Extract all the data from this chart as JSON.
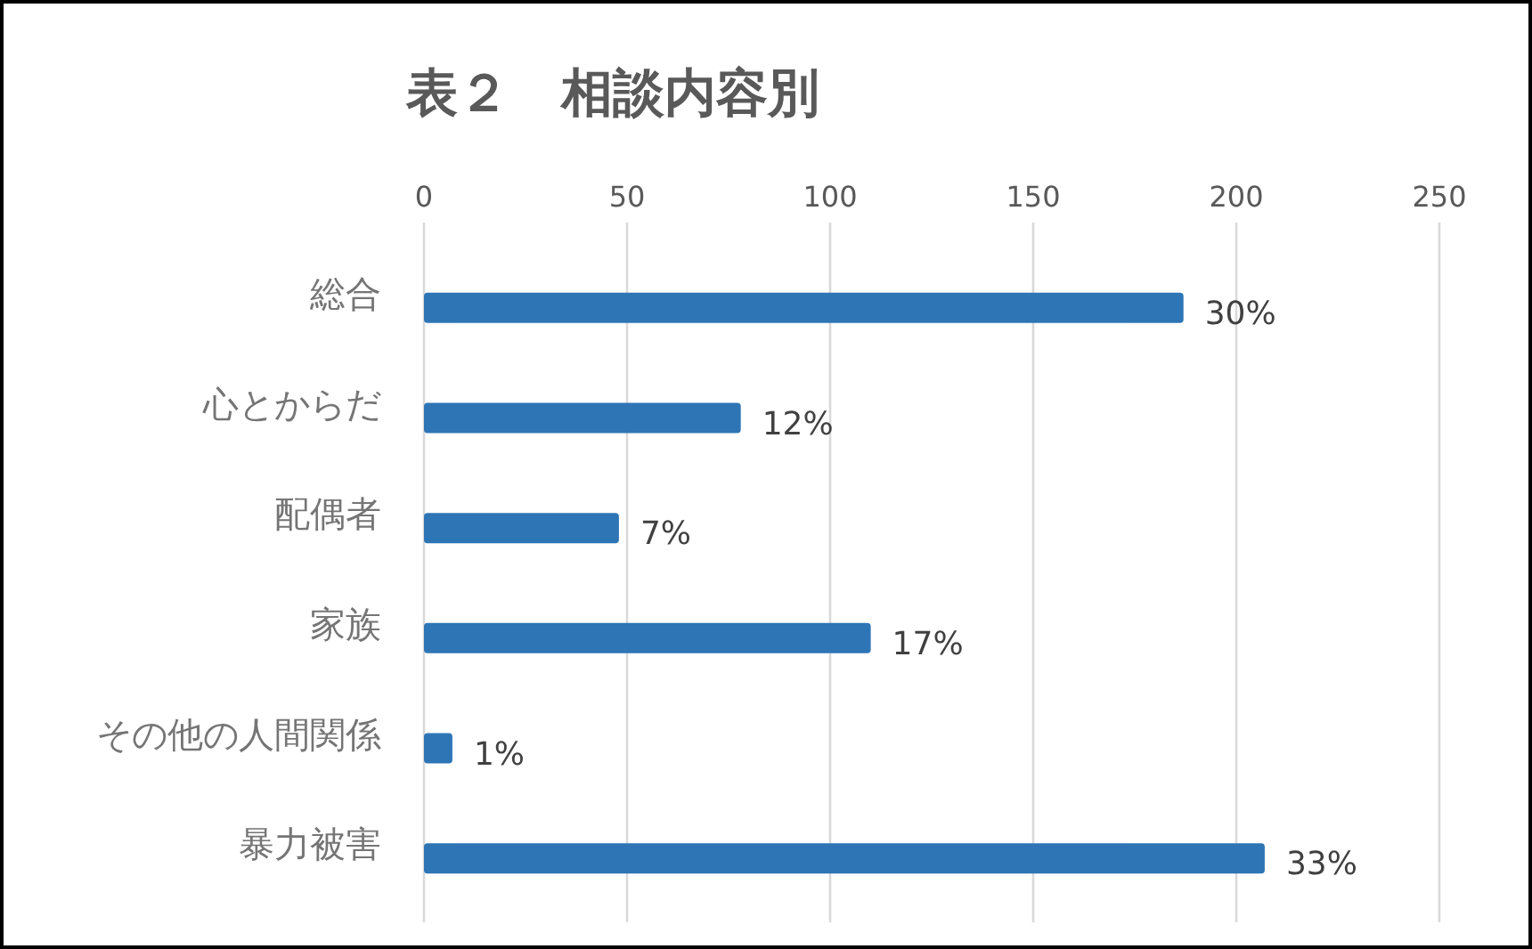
{
  "chart_data": {
    "type": "bar",
    "orientation": "horizontal",
    "title": "表２　相談内容別",
    "categories": [
      "総合",
      "心とからだ",
      "配偶者",
      "家族",
      "その他の人間関係",
      "暴力被害"
    ],
    "values": [
      187,
      78,
      48,
      110,
      7,
      207
    ],
    "color": "#2e75b6",
    "annotations": [
      {
        "text": "30%",
        "x": 187,
        "y": "総合"
      },
      {
        "text": "12%",
        "x": 78,
        "y": "心とからだ"
      },
      {
        "text": "7%",
        "x": 48,
        "y": "配偶者"
      },
      {
        "text": "17%",
        "x": 110,
        "y": "家族"
      },
      {
        "text": "1%",
        "x": 7,
        "y": "その他の人間関係"
      },
      {
        "text": "33%",
        "x": 207,
        "y": "暴力被害"
      }
    ],
    "xlim": [
      0,
      250
    ],
    "xticks": [
      0,
      50,
      100,
      150,
      200,
      250
    ],
    "grid": "x"
  }
}
